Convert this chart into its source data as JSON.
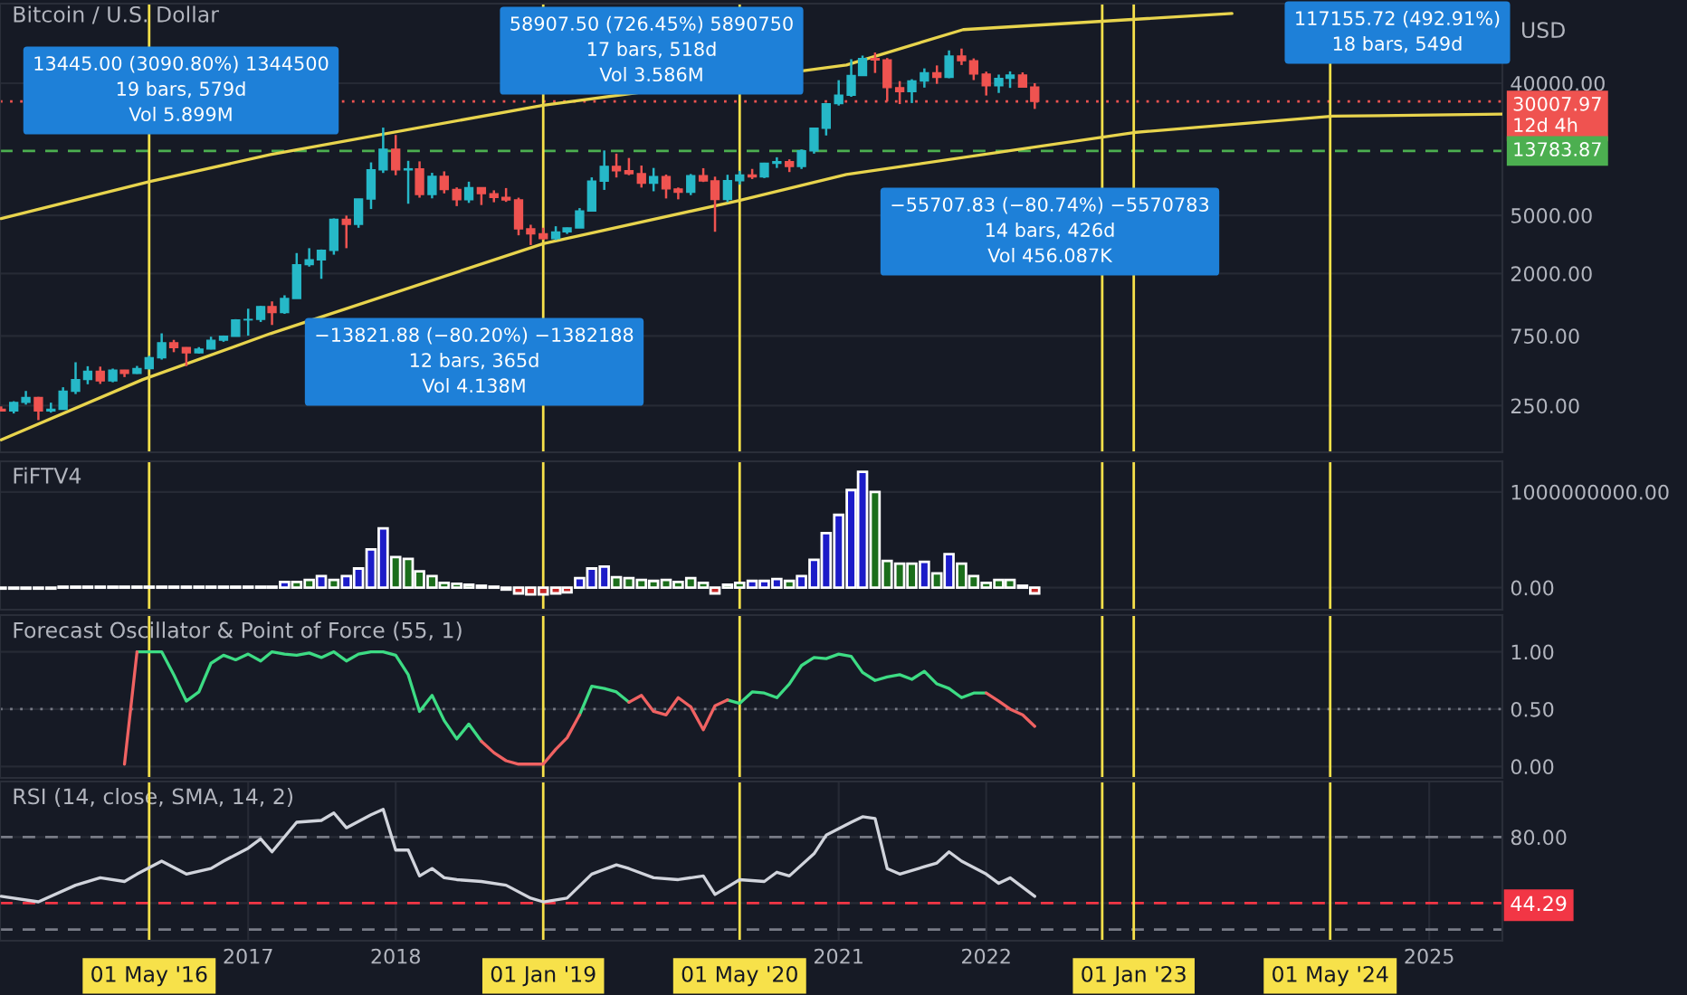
{
  "chart_data": [
    {
      "type": "candlestick",
      "title": "Bitcoin / U.S. Dollar",
      "ylabel": "USD",
      "log": true,
      "grid": true,
      "tick_labels": "y",
      "xlim": [
        "2015-04-28",
        "2025-07-01"
      ],
      "ylim": [
        120,
        140000
      ],
      "yticks": [
        {
          "value": 250,
          "label": "250.00"
        },
        {
          "value": 750,
          "label": "750.00"
        },
        {
          "value": 2000,
          "label": "2000.00"
        },
        {
          "value": 5000,
          "label": "5000.00"
        },
        {
          "value": 40000,
          "label": "40000.00"
        }
      ],
      "x": [
        "2015-05",
        "2015-06",
        "2015-07",
        "2015-08",
        "2015-09",
        "2015-10",
        "2015-11",
        "2015-12",
        "2016-01",
        "2016-02",
        "2016-03",
        "2016-04",
        "2016-05",
        "2016-06",
        "2016-07",
        "2016-08",
        "2016-09",
        "2016-10",
        "2016-11",
        "2016-12",
        "2017-01",
        "2017-02",
        "2017-03",
        "2017-04",
        "2017-05",
        "2017-06",
        "2017-07",
        "2017-08",
        "2017-09",
        "2017-10",
        "2017-11",
        "2017-12",
        "2018-01",
        "2018-02",
        "2018-03",
        "2018-04",
        "2018-05",
        "2018-06",
        "2018-07",
        "2018-08",
        "2018-09",
        "2018-10",
        "2018-11",
        "2018-12",
        "2019-01",
        "2019-02",
        "2019-03",
        "2019-04",
        "2019-05",
        "2019-06",
        "2019-07",
        "2019-08",
        "2019-09",
        "2019-10",
        "2019-11",
        "2019-12",
        "2020-01",
        "2020-02",
        "2020-03",
        "2020-04",
        "2020-05",
        "2020-06",
        "2020-07",
        "2020-08",
        "2020-09",
        "2020-10",
        "2020-11",
        "2020-12",
        "2021-01",
        "2021-02",
        "2021-03",
        "2021-04",
        "2021-05",
        "2021-06",
        "2021-07",
        "2021-08",
        "2021-09",
        "2021-10",
        "2021-11",
        "2021-12",
        "2022-01",
        "2022-02",
        "2022-03",
        "2022-04",
        "2022-05"
      ],
      "ohlc": [
        [
          236,
          247,
          228,
          230
        ],
        [
          230,
          268,
          221,
          263
        ],
        [
          263,
          315,
          254,
          284
        ],
        [
          284,
          287,
          199,
          230
        ],
        [
          230,
          262,
          224,
          236
        ],
        [
          236,
          334,
          235,
          314
        ],
        [
          314,
          495,
          300,
          377
        ],
        [
          377,
          465,
          350,
          430
        ],
        [
          430,
          462,
          352,
          369
        ],
        [
          369,
          448,
          361,
          437
        ],
        [
          437,
          439,
          392,
          416
        ],
        [
          416,
          467,
          412,
          448
        ],
        [
          448,
          548,
          442,
          531
        ],
        [
          531,
          780,
          516,
          673
        ],
        [
          673,
          704,
          580,
          624
        ],
        [
          624,
          627,
          466,
          574
        ],
        [
          574,
          628,
          567,
          609
        ],
        [
          609,
          740,
          606,
          700
        ],
        [
          700,
          754,
          683,
          745
        ],
        [
          745,
          975,
          743,
          964
        ],
        [
          964,
          1150,
          752,
          971
        ],
        [
          971,
          1200,
          933,
          1190
        ],
        [
          1190,
          1290,
          890,
          1080
        ],
        [
          1080,
          1420,
          1060,
          1350
        ],
        [
          1350,
          2760,
          1350,
          2300
        ],
        [
          2300,
          2980,
          2230,
          2480
        ],
        [
          2480,
          2920,
          1840,
          2880
        ],
        [
          2880,
          4760,
          2690,
          4700
        ],
        [
          4700,
          4980,
          2980,
          4340
        ],
        [
          4340,
          6470,
          4110,
          6470
        ],
        [
          6470,
          11500,
          5520,
          10230
        ],
        [
          10230,
          19890,
          9740,
          14160
        ],
        [
          14160,
          17710,
          9400,
          10220
        ],
        [
          10220,
          11790,
          6000,
          10400
        ],
        [
          10400,
          11690,
          6600,
          6940
        ],
        [
          6940,
          9760,
          6530,
          9240
        ],
        [
          9240,
          9990,
          7060,
          7500
        ],
        [
          7500,
          7760,
          5780,
          6400
        ],
        [
          6400,
          8490,
          6080,
          7730
        ],
        [
          7730,
          7760,
          5880,
          7030
        ],
        [
          7030,
          7410,
          6140,
          6630
        ],
        [
          6630,
          7680,
          6180,
          6370
        ],
        [
          6370,
          6600,
          3650,
          4040
        ],
        [
          4040,
          4310,
          3130,
          3740
        ],
        [
          3740,
          4110,
          3400,
          3460
        ],
        [
          3460,
          4210,
          3390,
          3850
        ],
        [
          3850,
          4120,
          3730,
          4100
        ],
        [
          4100,
          5600,
          4100,
          5350
        ],
        [
          5350,
          9090,
          5330,
          8570
        ],
        [
          8570,
          13880,
          7460,
          10820
        ],
        [
          10820,
          13200,
          9070,
          10080
        ],
        [
          10080,
          12330,
          9400,
          9630
        ],
        [
          9630,
          10950,
          7740,
          8300
        ],
        [
          8300,
          10540,
          7300,
          9200
        ],
        [
          9200,
          9500,
          6520,
          7570
        ],
        [
          7570,
          7750,
          6430,
          7190
        ],
        [
          7190,
          9580,
          6870,
          9350
        ],
        [
          9350,
          10500,
          8450,
          8600
        ],
        [
          8600,
          9190,
          3860,
          6410
        ],
        [
          6410,
          9470,
          6150,
          8620
        ],
        [
          8620,
          10080,
          8100,
          9450
        ],
        [
          9450,
          10380,
          8850,
          9140
        ],
        [
          9140,
          11440,
          8980,
          11350
        ],
        [
          11350,
          12470,
          10540,
          11660
        ],
        [
          11660,
          12070,
          9880,
          10780
        ],
        [
          10780,
          14100,
          10370,
          13800
        ],
        [
          13800,
          19860,
          13200,
          19700
        ],
        [
          19700,
          29300,
          17570,
          28990
        ],
        [
          28990,
          41950,
          28130,
          33110
        ],
        [
          33110,
          58350,
          32300,
          45140
        ],
        [
          45140,
          61780,
          45000,
          58920
        ],
        [
          58920,
          64850,
          47000,
          57750
        ],
        [
          57750,
          59500,
          30000,
          37300
        ],
        [
          37300,
          41330,
          28800,
          35040
        ],
        [
          35040,
          42600,
          29280,
          41460
        ],
        [
          41460,
          50500,
          37330,
          47100
        ],
        [
          47100,
          52920,
          39600,
          43790
        ],
        [
          43790,
          67000,
          43280,
          61300
        ],
        [
          61300,
          69000,
          53260,
          57000
        ],
        [
          57000,
          59100,
          42000,
          46200
        ],
        [
          46200,
          47990,
          32950,
          38480
        ],
        [
          38480,
          45820,
          34320,
          43190
        ],
        [
          43190,
          48190,
          37160,
          45510
        ],
        [
          45510,
          47440,
          37500,
          37640
        ],
        [
          37640,
          40000,
          26700,
          30007.97
        ]
      ],
      "colors": [
        "#ef5350",
        "#26b8c8",
        "#26b8c8",
        "#ef5350",
        "#26b8c8",
        "#26b8c8",
        "#26b8c8",
        "#26b8c8",
        "#ef5350",
        "#26b8c8",
        "#ef5350",
        "#26b8c8",
        "#26b8c8",
        "#26b8c8",
        "#ef5350",
        "#ef5350",
        "#26b8c8",
        "#26b8c8",
        "#26b8c8",
        "#26b8c8",
        "#26b8c8",
        "#26b8c8",
        "#ef5350",
        "#26b8c8",
        "#26b8c8",
        "#26b8c8",
        "#26b8c8",
        "#26b8c8",
        "#ef5350",
        "#26b8c8",
        "#26b8c8",
        "#26b8c8",
        "#ef5350",
        "#26b8c8",
        "#ef5350",
        "#26b8c8",
        "#ef5350",
        "#ef5350",
        "#26b8c8",
        "#ef5350",
        "#ef5350",
        "#ef5350",
        "#ef5350",
        "#ef5350",
        "#ef5350",
        "#26b8c8",
        "#26b8c8",
        "#26b8c8",
        "#26b8c8",
        "#26b8c8",
        "#ef5350",
        "#ef5350",
        "#ef5350",
        "#26b8c8",
        "#ef5350",
        "#ef5350",
        "#26b8c8",
        "#ef5350",
        "#ef5350",
        "#26b8c8",
        "#26b8c8",
        "#ef5350",
        "#26b8c8",
        "#26b8c8",
        "#ef5350",
        "#26b8c8",
        "#26b8c8",
        "#26b8c8",
        "#26b8c8",
        "#26b8c8",
        "#26b8c8",
        "#ef5350",
        "#ef5350",
        "#ef5350",
        "#26b8c8",
        "#26b8c8",
        "#ef5350",
        "#26b8c8",
        "#ef5350",
        "#ef5350",
        "#ef5350",
        "#26b8c8",
        "#26b8c8",
        "#ef5350",
        "#ef5350"
      ],
      "series": [
        {
          "type": "line",
          "color": "#e8d44d",
          "x": [
            "2015-05-01",
            "2016-05-01",
            "2017-02-25",
            "2019-01-01",
            "2021-01-20",
            "2021-11-05",
            "2023-09-01"
          ],
          "values": [
            4750,
            8500,
            13000,
            28300,
            53300,
            93000,
            120000
          ]
        },
        {
          "type": "line",
          "color": "#e8d44d",
          "x": [
            "2015-05-01",
            "2016-04-15",
            "2017-02-25",
            "2019-01-01",
            "2020-04-28",
            "2021-01-20",
            "2023-01-01",
            "2024-05-08",
            "2025-07-01"
          ],
          "values": [
            146,
            377,
            777,
            3200,
            6300,
            9500,
            18400,
            23800,
            24600
          ]
        }
      ],
      "ref_lines": [
        {
          "axis": "y",
          "value": 30007.97,
          "label": "30007.97\n12d 4h",
          "color": "#ef5350",
          "line_style": "dotted"
        },
        {
          "axis": "y",
          "value": 13783.87,
          "label": "13783.87",
          "color": "#4caf50",
          "line_style": "dashed"
        },
        {
          "axis": "x",
          "value": "2016-05-01",
          "color": "#f7e14a"
        },
        {
          "axis": "x",
          "value": "2019-01-01",
          "color": "#f7e14a"
        },
        {
          "axis": "x",
          "value": "2020-05-01",
          "color": "#f7e14a"
        },
        {
          "axis": "x",
          "value": "2022-10-15",
          "color": "#f7e14a"
        },
        {
          "axis": "x",
          "value": "2023-01-01",
          "color": "#f7e14a"
        },
        {
          "axis": "x",
          "value": "2024-05-01",
          "color": "#f7e14a"
        }
      ],
      "annotations": [
        "13445.00 (3090.80%) 1344500\n19 bars, 579d\nVol 5.899M",
        "−13821.88 (−80.20%) −1382188\n12 bars, 365d\nVol 4.138M",
        "58907.50 (726.45%) 5890750\n17 bars, 518d\nVol 3.586M",
        "−55707.83 (−80.74%) −5570783\n14 bars, 426d\nVol 456.087K",
        "117155.72 (492.91%)\n18 bars, 549d"
      ]
    },
    {
      "type": "bar",
      "title": "FiFTV4",
      "grid": true,
      "tick_labels": "y",
      "xlim": [
        "2015-04-28",
        "2025-07-01"
      ],
      "ylim": [
        -230000000,
        1320000000
      ],
      "yticks": [
        {
          "value": 0,
          "label": "0.00"
        },
        {
          "value": 1000000000,
          "label": "1000000000.00"
        }
      ],
      "x": [
        "2015-05",
        "2015-06",
        "2015-07",
        "2015-08",
        "2015-09",
        "2015-10",
        "2015-11",
        "2015-12",
        "2016-01",
        "2016-02",
        "2016-03",
        "2016-04",
        "2016-05",
        "2016-06",
        "2016-07",
        "2016-08",
        "2016-09",
        "2016-10",
        "2016-11",
        "2016-12",
        "2017-01",
        "2017-02",
        "2017-03",
        "2017-04",
        "2017-05",
        "2017-06",
        "2017-07",
        "2017-08",
        "2017-09",
        "2017-10",
        "2017-11",
        "2017-12",
        "2018-01",
        "2018-02",
        "2018-03",
        "2018-04",
        "2018-05",
        "2018-06",
        "2018-07",
        "2018-08",
        "2018-09",
        "2018-10",
        "2018-11",
        "2018-12",
        "2019-01",
        "2019-02",
        "2019-03",
        "2019-04",
        "2019-05",
        "2019-06",
        "2019-07",
        "2019-08",
        "2019-09",
        "2019-10",
        "2019-11",
        "2019-12",
        "2020-01",
        "2020-02",
        "2020-03",
        "2020-04",
        "2020-05",
        "2020-06",
        "2020-07",
        "2020-08",
        "2020-09",
        "2020-10",
        "2020-11",
        "2020-12",
        "2021-01",
        "2021-02",
        "2021-03",
        "2021-04",
        "2021-05",
        "2021-06",
        "2021-07",
        "2021-08",
        "2021-09",
        "2021-10",
        "2021-11",
        "2021-12",
        "2022-01",
        "2022-02",
        "2022-03",
        "2022-04",
        "2022-05"
      ],
      "values": [
        -10000000,
        -10000000,
        -10000000,
        -10000000,
        -10000000,
        10000000,
        10000000,
        10000000,
        10000000,
        10000000,
        10000000,
        10000000,
        10000000,
        10000000,
        10000000,
        10000000,
        10000000,
        10000000,
        10000000,
        10000000,
        10000000,
        10000000,
        10000000,
        60000000,
        60000000,
        80000000,
        120000000,
        80000000,
        120000000,
        200000000,
        400000000,
        620000000,
        320000000,
        300000000,
        170000000,
        120000000,
        50000000,
        40000000,
        30000000,
        20000000,
        10000000,
        -20000000,
        -60000000,
        -70000000,
        -70000000,
        -60000000,
        -50000000,
        100000000,
        200000000,
        220000000,
        110000000,
        100000000,
        80000000,
        70000000,
        80000000,
        60000000,
        100000000,
        50000000,
        -60000000,
        30000000,
        50000000,
        70000000,
        70000000,
        90000000,
        70000000,
        120000000,
        290000000,
        570000000,
        760000000,
        1020000000,
        1210000000,
        1000000000,
        280000000,
        250000000,
        250000000,
        270000000,
        150000000,
        350000000,
        250000000,
        120000000,
        50000000,
        80000000,
        80000000,
        20000000,
        -60000000
      ],
      "colors": [
        "#c62828",
        "#c62828",
        "#c62828",
        "#c62828",
        "#c62828",
        "#1c1cc8",
        "#1c1cc8",
        "#1c1cc8",
        "#1b6e1b",
        "#1b6e1b",
        "#1b6e1b",
        "#1b6e1b",
        "#1b6e1b",
        "#1b6e1b",
        "#1c1cc8",
        "#1c1cc8",
        "#1c1cc8",
        "#1c1cc8",
        "#1b6e1b",
        "#1b6e1b",
        "#1c1cc8",
        "#1b6e1b",
        "#1c1cc8",
        "#1c1cc8",
        "#1b6e1b",
        "#1b6e1b",
        "#1c1cc8",
        "#1b6e1b",
        "#1c1cc8",
        "#1c1cc8",
        "#1c1cc8",
        "#1c1cc8",
        "#1b6e1b",
        "#1b6e1b",
        "#1b6e1b",
        "#1b6e1b",
        "#1b6e1b",
        "#1b6e1b",
        "#1b6e1b",
        "#1b6e1b",
        "#1b6e1b",
        "#c62828",
        "#c62828",
        "#c62828",
        "#c62828",
        "#c62828",
        "#c62828",
        "#1c1cc8",
        "#1c1cc8",
        "#1c1cc8",
        "#1b6e1b",
        "#1b6e1b",
        "#1b6e1b",
        "#1b6e1b",
        "#1b6e1b",
        "#1b6e1b",
        "#1b6e1b",
        "#1b6e1b",
        "#c62828",
        "#1b6e1b",
        "#1b6e1b",
        "#1c1cc8",
        "#1c1cc8",
        "#1c1cc8",
        "#1b6e1b",
        "#1c1cc8",
        "#1c1cc8",
        "#1c1cc8",
        "#1c1cc8",
        "#1c1cc8",
        "#1c1cc8",
        "#1b6e1b",
        "#1b6e1b",
        "#1b6e1b",
        "#1b6e1b",
        "#1c1cc8",
        "#1b6e1b",
        "#1c1cc8",
        "#1b6e1b",
        "#1b6e1b",
        "#1b6e1b",
        "#1b6e1b",
        "#1b6e1b",
        "#1b6e1b",
        "#c62828"
      ],
      "ref_lines": [
        {
          "axis": "x",
          "value": "2016-05-01",
          "color": "#f7e14a"
        },
        {
          "axis": "x",
          "value": "2019-01-01",
          "color": "#f7e14a"
        },
        {
          "axis": "x",
          "value": "2020-05-01",
          "color": "#f7e14a"
        },
        {
          "axis": "x",
          "value": "2022-10-15",
          "color": "#f7e14a"
        },
        {
          "axis": "x",
          "value": "2023-01-01",
          "color": "#f7e14a"
        },
        {
          "axis": "x",
          "value": "2024-05-01",
          "color": "#f7e14a"
        }
      ]
    },
    {
      "type": "line",
      "title": "Forecast Oscillator & Point of Force (55, 1)",
      "grid": true,
      "tick_labels": "y",
      "xlim": [
        "2015-04-28",
        "2025-07-01"
      ],
      "ylim": [
        -0.1,
        1.32
      ],
      "yticks": [
        {
          "value": 0,
          "label": "0.00"
        },
        {
          "value": 0.5,
          "label": "0.50"
        },
        {
          "value": 1,
          "label": "1.00"
        }
      ],
      "x": [
        "2016-03",
        "2016-04",
        "2016-05",
        "2016-06",
        "2016-07",
        "2016-08",
        "2016-09",
        "2016-10",
        "2016-11",
        "2016-12",
        "2017-01",
        "2017-02",
        "2017-03",
        "2017-04",
        "2017-05",
        "2017-06",
        "2017-07",
        "2017-08",
        "2017-09",
        "2017-10",
        "2017-11",
        "2017-12",
        "2018-01",
        "2018-02",
        "2018-03",
        "2018-04",
        "2018-05",
        "2018-06",
        "2018-07",
        "2018-08",
        "2018-09",
        "2018-10",
        "2018-11",
        "2018-12",
        "2019-01",
        "2019-02",
        "2019-03",
        "2019-04",
        "2019-05",
        "2019-06",
        "2019-07",
        "2019-08",
        "2019-09",
        "2019-10",
        "2019-11",
        "2019-12",
        "2020-01",
        "2020-02",
        "2020-03",
        "2020-04",
        "2020-05",
        "2020-06",
        "2020-07",
        "2020-08",
        "2020-09",
        "2020-10",
        "2020-11",
        "2020-12",
        "2021-01",
        "2021-02",
        "2021-03",
        "2021-04",
        "2021-05",
        "2021-06",
        "2021-07",
        "2021-08",
        "2021-09",
        "2021-10",
        "2021-11",
        "2021-12",
        "2022-01",
        "2022-02",
        "2022-03",
        "2022-04",
        "2022-05"
      ],
      "series": [
        {
          "color": "#3ddc84",
          "values": [
            null,
            1.0,
            1.0,
            1.0,
            0.8,
            0.57,
            0.65,
            0.9,
            0.97,
            0.93,
            0.98,
            0.92,
            1.0,
            0.98,
            0.97,
            0.99,
            0.95,
            1.0,
            0.92,
            0.98,
            1.0,
            1.0,
            0.97,
            0.8,
            0.48,
            0.62,
            0.4,
            0.24,
            0.37,
            0.22,
            null,
            null,
            null,
            null,
            null,
            null,
            null,
            0.45,
            0.7,
            0.68,
            0.65,
            0.56,
            null,
            null,
            null,
            null,
            null,
            null,
            null,
            0.58,
            0.55,
            0.65,
            0.64,
            0.6,
            0.72,
            0.88,
            0.95,
            0.94,
            0.98,
            0.96,
            0.82,
            0.75,
            0.78,
            0.8,
            0.76,
            0.83,
            0.72,
            0.68,
            0.6,
            0.64,
            0.64,
            null,
            null,
            null,
            null
          ]
        },
        {
          "color": "#f06262",
          "values": [
            0.02,
            1.0,
            null,
            null,
            null,
            null,
            null,
            null,
            null,
            null,
            null,
            null,
            null,
            null,
            null,
            null,
            null,
            null,
            null,
            null,
            null,
            null,
            null,
            null,
            null,
            null,
            null,
            null,
            null,
            0.22,
            0.12,
            0.05,
            0.02,
            0.02,
            0.02,
            0.15,
            0.25,
            0.45,
            null,
            null,
            null,
            0.56,
            0.62,
            0.48,
            0.45,
            0.6,
            0.52,
            0.32,
            0.53,
            0.58,
            null,
            null,
            null,
            null,
            null,
            null,
            null,
            null,
            null,
            null,
            null,
            null,
            null,
            null,
            null,
            null,
            null,
            null,
            null,
            null,
            0.64,
            0.57,
            0.5,
            0.45,
            0.35
          ]
        }
      ],
      "ref_lines": [
        {
          "axis": "y",
          "value": 0.5,
          "line_style": "dotted"
        },
        {
          "axis": "x",
          "value": "2016-05-01",
          "color": "#f7e14a"
        },
        {
          "axis": "x",
          "value": "2019-01-01",
          "color": "#f7e14a"
        },
        {
          "axis": "x",
          "value": "2020-05-01",
          "color": "#f7e14a"
        },
        {
          "axis": "x",
          "value": "2022-10-15",
          "color": "#f7e14a"
        },
        {
          "axis": "x",
          "value": "2023-01-01",
          "color": "#f7e14a"
        },
        {
          "axis": "x",
          "value": "2024-05-01",
          "color": "#f7e14a"
        }
      ]
    },
    {
      "type": "line",
      "title": "RSI (14, close, SMA, 14, 2)",
      "grid": true,
      "xlim": [
        "2015-04-28",
        "2025-07-01"
      ],
      "ylim": [
        24,
        110
      ],
      "yticks": [
        {
          "value": 44.29,
          "label": "44.29"
        },
        {
          "value": 80,
          "label": "80.00"
        }
      ],
      "xticks": [
        {
          "value": "2017-01-01",
          "label": "2017"
        },
        {
          "value": "2018-01-01",
          "label": "2018"
        },
        {
          "value": "2021-01-01",
          "label": "2021"
        },
        {
          "value": "2022-01-01",
          "label": "2022"
        },
        {
          "value": "2025-01-01",
          "label": "2025"
        }
      ],
      "series": [
        {
          "color": "#d1d4dc",
          "x": [
            "2015-05",
            "2015-08",
            "2015-11",
            "2016-01",
            "2016-03",
            "2016-04",
            "2016-06",
            "2016-08",
            "2016-10",
            "2016-11",
            "2017-01",
            "2017-02",
            "2017-03",
            "2017-05",
            "2017-07",
            "2017-08",
            "2017-09",
            "2017-11",
            "2017-12",
            "2018-01",
            "2018-02",
            "2018-03",
            "2018-04",
            "2018-05",
            "2018-06",
            "2018-08",
            "2018-10",
            "2018-12",
            "2019-01",
            "2019-03",
            "2019-05",
            "2019-07",
            "2019-08",
            "2019-10",
            "2019-12",
            "2020-02",
            "2020-03",
            "2020-05",
            "2020-07",
            "2020-08",
            "2020-09",
            "2020-11",
            "2020-12",
            "2021-02",
            "2021-03",
            "2021-04",
            "2021-05",
            "2021-06",
            "2021-08",
            "2021-09",
            "2021-10",
            "2021-11",
            "2022-01",
            "2022-02",
            "2022-03",
            "2022-05"
          ],
          "values": [
            48,
            45,
            54,
            58,
            56,
            60,
            67,
            60,
            63,
            67,
            74,
            79,
            72,
            88,
            89,
            93,
            85,
            92,
            95,
            73,
            73,
            59,
            63,
            58,
            57,
            56,
            54,
            47,
            45,
            47,
            60,
            65,
            63,
            58,
            57,
            59,
            49,
            57,
            56,
            61,
            59,
            71,
            81,
            88,
            91,
            90,
            63,
            60,
            64,
            66,
            72,
            67,
            60,
            55,
            58,
            48
          ]
        }
      ],
      "ref_lines": [
        {
          "axis": "y",
          "value": 80,
          "line_style": "dashed"
        },
        {
          "axis": "y",
          "value": 30,
          "line_style": "dashed"
        },
        {
          "axis": "y",
          "value": 44.29,
          "color": "#f23645",
          "line_style": "dashed"
        },
        {
          "axis": "x",
          "value": "2016-05-01",
          "label": "01 May '16",
          "color": "#f7e14a"
        },
        {
          "axis": "x",
          "value": "2019-01-01",
          "label": "01 Jan '19",
          "color": "#f7e14a"
        },
        {
          "axis": "x",
          "value": "2020-05-01",
          "label": "01 May '20",
          "color": "#f7e14a"
        },
        {
          "axis": "x",
          "value": "2022-10-15",
          "color": "#f7e14a"
        },
        {
          "axis": "x",
          "value": "2023-01-01",
          "label": "01 Jan '23",
          "color": "#f7e14a"
        },
        {
          "axis": "x",
          "value": "2024-05-01",
          "label": "01 May '24",
          "color": "#f7e14a"
        }
      ]
    }
  ]
}
